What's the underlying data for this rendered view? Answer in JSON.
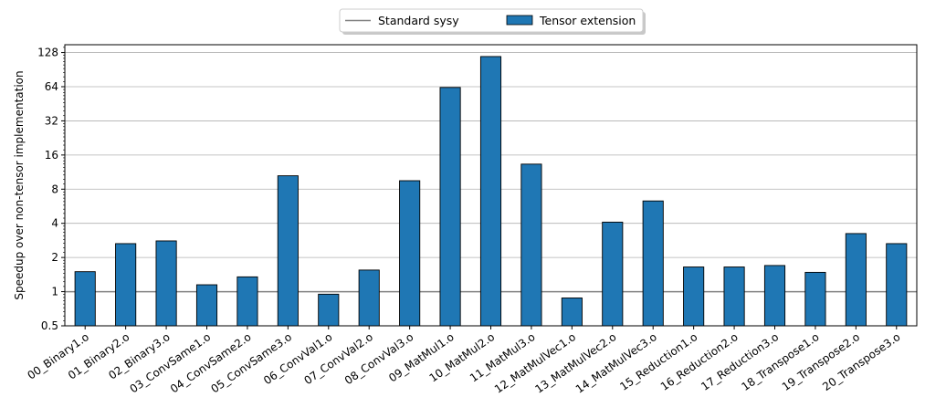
{
  "chart_data": {
    "type": "bar",
    "ylabel": "Speedup over non-tensor implementation",
    "yscale": "log2",
    "ylim": [
      0.5,
      150
    ],
    "yticks": [
      0.5,
      1,
      2,
      4,
      8,
      16,
      32,
      64,
      128
    ],
    "grid": "horizontal-major",
    "legend_position": "top-center",
    "reference_line": {
      "name": "Standard sysy",
      "value": 1,
      "color": "#808080"
    },
    "categories": [
      "00_Binary1.o",
      "01_Binary2.o",
      "02_Binary3.o",
      "03_ConvSame1.o",
      "04_ConvSame2.o",
      "05_ConvSame3.o",
      "06_ConvVal1.o",
      "07_ConvVal2.o",
      "08_ConvVal3.o",
      "09_MatMul1.o",
      "10_MatMul2.o",
      "11_MatMul3.o",
      "12_MatMulVec1.o",
      "13_MatMulVec2.o",
      "14_MatMulVec3.o",
      "15_Reduction1.o",
      "16_Reduction2.o",
      "17_Reduction3.o",
      "18_Transpose1.o",
      "19_Transpose2.o",
      "20_Transpose3.o"
    ],
    "series": [
      {
        "name": "Tensor extension",
        "color": "#1f77b4",
        "values": [
          1.5,
          2.65,
          2.8,
          1.15,
          1.35,
          10.5,
          0.95,
          1.55,
          9.5,
          63,
          118,
          13.3,
          0.88,
          4.1,
          6.3,
          1.65,
          1.65,
          1.7,
          1.48,
          3.25,
          2.65
        ]
      }
    ]
  }
}
